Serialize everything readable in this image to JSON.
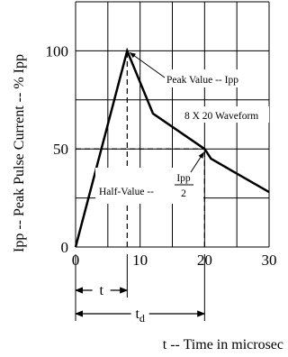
{
  "chart_data": {
    "type": "line",
    "title": "",
    "xlabel": "t -- Time in microsec",
    "ylabel": "Ipp -- Peak Pulse Current -- % Ipp",
    "xlim": [
      0,
      30
    ],
    "ylim": [
      0,
      125
    ],
    "x_ticks": [
      0,
      10,
      20,
      30
    ],
    "y_ticks": [
      0,
      50,
      100
    ],
    "grid": true,
    "series": [
      {
        "x": [
          0,
          8,
          12,
          20,
          21,
          30
        ],
        "y": [
          0,
          100,
          68,
          50,
          45,
          28
        ]
      }
    ],
    "reference_lines": [
      {
        "type": "vertical",
        "x": 8,
        "y": [
          0,
          100
        ]
      },
      {
        "type": "vertical",
        "x": 20,
        "y": [
          0,
          50
        ]
      },
      {
        "type": "horizontal",
        "y": 50,
        "x": [
          0,
          20
        ]
      }
    ],
    "annotations": {
      "peak": "Peak Value -- Ipp",
      "waveform": "8 X 20 Waveform",
      "half_value": "Half-Value --",
      "half_num": "Ipp",
      "half_den": "2"
    },
    "dimensions": [
      {
        "label": "t",
        "x": [
          0,
          8
        ]
      },
      {
        "label": "t",
        "subscript": "d",
        "x": [
          0,
          20
        ]
      }
    ]
  }
}
